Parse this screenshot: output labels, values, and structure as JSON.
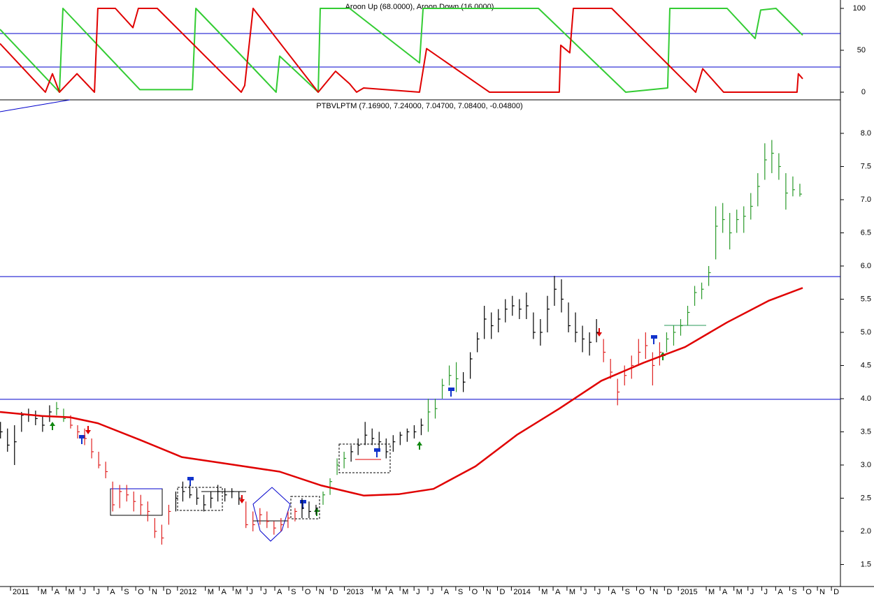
{
  "chart_data": [
    {
      "type": "line",
      "title": "Aroon Up (68.0000), Aroon Down (16.0000)",
      "xlim": [
        2010.937,
        2015.971
      ],
      "ylim": [
        -9.17,
        110
      ],
      "yticks": [
        0,
        50,
        100
      ],
      "hlines": [
        70,
        30
      ],
      "hline_color": "#0000cc",
      "series": [
        {
          "color": "#33cc33",
          "x": [
            2010.937,
            2011.293,
            2011.314,
            2011.775,
            2012.089,
            2012.11,
            2012.424,
            2012.591,
            2012.612,
            2012.843,
            2012.855,
            2013.031,
            2013.45,
            2013.471,
            2014.162,
            2014.685,
            2014.936,
            2014.949,
            2015.292,
            2015.46,
            2015.493,
            2015.585,
            2015.745
          ],
          "values": [
            75,
            0,
            100,
            3,
            3,
            100,
            35,
            0,
            43,
            0,
            100,
            100,
            35,
            100,
            100,
            0,
            5,
            100,
            100,
            64,
            98,
            100,
            68
          ]
        },
        {
          "color": "#e00000",
          "x": [
            2010.937,
            2011.209,
            2011.251,
            2011.293,
            2011.398,
            2011.503,
            2011.523,
            2011.628,
            2011.733,
            2011.766,
            2011.879,
            2012.382,
            2012.403,
            2012.453,
            2012.843,
            2012.947,
            2013.031,
            2013.073,
            2013.115,
            2013.45,
            2013.492,
            2013.869,
            2014.287,
            2014.296,
            2014.35,
            2014.371,
            2014.601,
            2015.104,
            2015.146,
            2015.271,
            2015.711,
            2015.719,
            2015.745
          ],
          "values": [
            58,
            0,
            22,
            0,
            22,
            0,
            100,
            100,
            77,
            100,
            100,
            0,
            8,
            100,
            0,
            25,
            10,
            0,
            5,
            0,
            52,
            0,
            0,
            56,
            47,
            100,
            100,
            0,
            28,
            0,
            0,
            22,
            16
          ]
        }
      ]
    },
    {
      "type": "ohlc",
      "title": "PTBVLPTM (7.16900, 7.24000, 7.04700, 7.08400, -0.04800)",
      "xlim": [
        2010.937,
        2015.971
      ],
      "ylim": [
        1.168,
        8.484
      ],
      "yticks": [
        1.5,
        {
          "value": 2,
          "label": "2.0"
        },
        2.5,
        {
          "value": 3,
          "label": "3.0"
        },
        3.5,
        {
          "value": 4,
          "label": "4.0"
        },
        4.5,
        {
          "value": 5,
          "label": "5.0"
        },
        5.5,
        {
          "value": 6,
          "label": "6.0"
        },
        6.5,
        {
          "value": 7,
          "label": "7.0"
        },
        7.5,
        {
          "value": 8,
          "label": "8.0"
        }
      ],
      "xticks": [
        {
          "value": 2011,
          "label": "2011"
        },
        {
          "value": 2011.167,
          "label": "M"
        },
        {
          "value": 2011.25,
          "label": "A"
        },
        {
          "value": 2011.333,
          "label": "M"
        },
        {
          "value": 2011.417,
          "label": "J"
        },
        {
          "value": 2011.5,
          "label": "J"
        },
        {
          "value": 2011.583,
          "label": "A"
        },
        {
          "value": 2011.667,
          "label": "S"
        },
        {
          "value": 2011.75,
          "label": "O"
        },
        {
          "value": 2011.833,
          "label": "N"
        },
        {
          "value": 2011.917,
          "label": "D"
        },
        {
          "value": 2012,
          "label": "2012"
        },
        {
          "value": 2012.167,
          "label": "M"
        },
        {
          "value": 2012.25,
          "label": "A"
        },
        {
          "value": 2012.333,
          "label": "M"
        },
        {
          "value": 2012.417,
          "label": "J"
        },
        {
          "value": 2012.5,
          "label": "J"
        },
        {
          "value": 2012.583,
          "label": "A"
        },
        {
          "value": 2012.667,
          "label": "S"
        },
        {
          "value": 2012.75,
          "label": "O"
        },
        {
          "value": 2012.833,
          "label": "N"
        },
        {
          "value": 2012.917,
          "label": "D"
        },
        {
          "value": 2013,
          "label": "2013"
        },
        {
          "value": 2013.167,
          "label": "M"
        },
        {
          "value": 2013.25,
          "label": "A"
        },
        {
          "value": 2013.333,
          "label": "M"
        },
        {
          "value": 2013.417,
          "label": "J"
        },
        {
          "value": 2013.5,
          "label": "J"
        },
        {
          "value": 2013.583,
          "label": "A"
        },
        {
          "value": 2013.667,
          "label": "S"
        },
        {
          "value": 2013.75,
          "label": "O"
        },
        {
          "value": 2013.833,
          "label": "N"
        },
        {
          "value": 2013.917,
          "label": "D"
        },
        {
          "value": 2014,
          "label": "2014"
        },
        {
          "value": 2014.167,
          "label": "M"
        },
        {
          "value": 2014.25,
          "label": "A"
        },
        {
          "value": 2014.333,
          "label": "M"
        },
        {
          "value": 2014.417,
          "label": "J"
        },
        {
          "value": 2014.5,
          "label": "J"
        },
        {
          "value": 2014.583,
          "label": "A"
        },
        {
          "value": 2014.667,
          "label": "S"
        },
        {
          "value": 2014.75,
          "label": "O"
        },
        {
          "value": 2014.833,
          "label": "N"
        },
        {
          "value": 2014.917,
          "label": "D"
        },
        {
          "value": 2015,
          "label": "2015"
        },
        {
          "value": 2015.167,
          "label": "M"
        },
        {
          "value": 2015.25,
          "label": "A"
        },
        {
          "value": 2015.333,
          "label": "M"
        },
        {
          "value": 2015.417,
          "label": "J"
        },
        {
          "value": 2015.5,
          "label": "J"
        },
        {
          "value": 2015.583,
          "label": "A"
        },
        {
          "value": 2015.667,
          "label": "S"
        },
        {
          "value": 2015.75,
          "label": "O"
        },
        {
          "value": 2015.833,
          "label": "N"
        },
        {
          "value": 2015.917,
          "label": "D"
        }
      ],
      "hlines": [
        5.84,
        3.99
      ],
      "hline_color": "#0000cc",
      "series": [
        {
          "color": "#e00000",
          "x": [
            2010.937,
            2011.188,
            2011.356,
            2011.523,
            2011.775,
            2012.026,
            2012.319,
            2012.612,
            2012.863,
            2013.115,
            2013.324,
            2013.533,
            2013.785,
            2014.036,
            2014.287,
            2014.539,
            2014.79,
            2015.041,
            2015.292,
            2015.544,
            2015.745
          ],
          "values": [
            3.8,
            3.74,
            3.72,
            3.63,
            3.38,
            3.12,
            3.01,
            2.9,
            2.69,
            2.54,
            2.56,
            2.64,
            2.98,
            3.46,
            3.85,
            4.27,
            4.54,
            4.78,
            5.15,
            5.48,
            5.67
          ]
        }
      ],
      "bars": [
        {
          "color": "#000000",
          "x": [
            2010.94,
            2010.982,
            2011.024,
            2011.066,
            2011.108,
            2011.15,
            2011.192,
            2011.234
          ],
          "high": [
            3.65,
            3.55,
            3.6,
            3.8,
            3.85,
            3.82,
            3.75,
            3.9
          ],
          "low": [
            3.4,
            3.2,
            3.0,
            3.5,
            3.65,
            3.6,
            3.5,
            3.65
          ],
          "close": [
            3.5,
            3.3,
            3.35,
            3.75,
            3.75,
            3.7,
            3.6,
            3.8
          ]
        },
        {
          "color": "#2a9a2a",
          "x": [
            2011.276,
            2011.318
          ],
          "high": [
            3.95,
            3.85
          ],
          "low": [
            3.75,
            3.65
          ],
          "close": [
            3.85,
            3.7
          ]
        },
        {
          "color": "#e02020",
          "x": [
            2011.36,
            2011.402,
            2011.444,
            2011.486,
            2011.528,
            2011.57,
            2011.612,
            2011.654,
            2011.696,
            2011.738,
            2011.78,
            2011.822,
            2011.864,
            2011.906,
            2011.948
          ],
          "high": [
            3.75,
            3.6,
            3.55,
            3.4,
            3.2,
            3.05,
            2.75,
            2.7,
            2.7,
            2.6,
            2.55,
            2.45,
            2.2,
            2.1,
            2.4
          ],
          "low": [
            3.55,
            3.4,
            3.3,
            3.1,
            2.95,
            2.8,
            2.3,
            2.35,
            2.45,
            2.3,
            2.25,
            2.15,
            1.9,
            1.8,
            2.1
          ],
          "close": [
            3.6,
            3.5,
            3.4,
            3.2,
            3.0,
            2.9,
            2.4,
            2.6,
            2.55,
            2.45,
            2.4,
            2.3,
            2.0,
            1.9,
            2.3
          ]
        },
        {
          "color": "#000000",
          "x": [
            2011.99,
            2012.032,
            2012.074,
            2012.116,
            2012.158,
            2012.2,
            2012.242,
            2012.284,
            2012.326,
            2012.368
          ],
          "high": [
            2.6,
            2.75,
            2.7,
            2.65,
            2.55,
            2.6,
            2.7,
            2.65,
            2.65,
            2.6
          ],
          "low": [
            2.3,
            2.45,
            2.5,
            2.4,
            2.3,
            2.35,
            2.45,
            2.45,
            2.5,
            2.4
          ],
          "close": [
            2.5,
            2.6,
            2.55,
            2.5,
            2.4,
            2.5,
            2.6,
            2.55,
            2.6,
            2.5
          ]
        },
        {
          "color": "#e02020",
          "x": [
            2012.41,
            2012.452,
            2012.494,
            2012.536,
            2012.578,
            2012.62,
            2012.662,
            2012.704
          ],
          "high": [
            2.45,
            2.3,
            2.35,
            2.3,
            2.15,
            2.2,
            2.3,
            2.35
          ],
          "low": [
            2.05,
            2.0,
            2.1,
            2.05,
            1.95,
            2.0,
            2.05,
            2.15
          ],
          "close": [
            2.1,
            2.1,
            2.25,
            2.15,
            2.05,
            2.1,
            2.2,
            2.3
          ]
        },
        {
          "color": "#000000",
          "x": [
            2012.746,
            2012.788,
            2012.83
          ],
          "high": [
            2.5,
            2.45,
            2.4
          ],
          "low": [
            2.2,
            2.2,
            2.25
          ],
          "close": [
            2.35,
            2.3,
            2.35
          ]
        },
        {
          "color": "#2a9a2a",
          "x": [
            2012.872,
            2012.914,
            2012.956,
            2012.998
          ],
          "high": [
            2.6,
            2.8,
            3.1,
            3.2
          ],
          "low": [
            2.4,
            2.55,
            2.85,
            2.95
          ],
          "close": [
            2.55,
            2.75,
            3.0,
            3.1
          ]
        },
        {
          "color": "#000000",
          "x": [
            2013.04,
            2013.082,
            2013.124,
            2013.166,
            2013.208,
            2013.25,
            2013.292,
            2013.334,
            2013.376,
            2013.418,
            2013.46
          ],
          "high": [
            3.3,
            3.4,
            3.65,
            3.55,
            3.5,
            3.4,
            3.45,
            3.5,
            3.55,
            3.6,
            3.7
          ],
          "low": [
            3.05,
            3.15,
            3.3,
            3.3,
            3.25,
            3.1,
            3.2,
            3.3,
            3.35,
            3.4,
            3.45
          ],
          "close": [
            3.2,
            3.3,
            3.45,
            3.4,
            3.35,
            3.2,
            3.35,
            3.45,
            3.5,
            3.5,
            3.6
          ]
        },
        {
          "color": "#2a9a2a",
          "x": [
            2013.502,
            2013.544,
            2013.586,
            2013.628,
            2013.67
          ],
          "high": [
            4.0,
            4.0,
            4.3,
            4.5,
            4.55
          ],
          "low": [
            3.5,
            3.7,
            4.0,
            4.2,
            4.1
          ],
          "close": [
            3.8,
            3.85,
            4.2,
            4.35,
            4.3
          ]
        },
        {
          "color": "#000000",
          "x": [
            2013.712,
            2013.754,
            2013.796,
            2013.838,
            2013.88,
            2013.922,
            2013.964,
            2014.006,
            2014.048,
            2014.09,
            2014.132,
            2014.174,
            2014.216,
            2014.258,
            2014.3,
            2014.342,
            2014.384,
            2014.426,
            2014.468,
            2014.51
          ],
          "high": [
            4.4,
            4.7,
            5.0,
            5.4,
            5.3,
            5.35,
            5.5,
            5.55,
            5.5,
            5.6,
            5.3,
            5.2,
            5.55,
            5.85,
            5.8,
            5.45,
            5.3,
            5.1,
            5.0,
            5.2
          ],
          "low": [
            4.1,
            4.3,
            4.7,
            4.9,
            4.9,
            5.0,
            5.15,
            5.25,
            5.2,
            5.2,
            4.9,
            4.8,
            5.0,
            5.4,
            5.3,
            5.0,
            4.85,
            4.7,
            4.65,
            4.85
          ],
          "close": [
            4.25,
            4.6,
            4.9,
            5.2,
            5.1,
            5.2,
            5.35,
            5.4,
            5.35,
            5.4,
            5.0,
            5.0,
            5.35,
            5.65,
            5.5,
            5.1,
            5.0,
            4.9,
            4.85,
            5.0
          ]
        },
        {
          "color": "#e02020",
          "x": [
            2014.552,
            2014.594,
            2014.636,
            2014.678,
            2014.72,
            2014.762,
            2014.804,
            2014.846,
            2014.888
          ],
          "high": [
            4.9,
            4.6,
            4.3,
            4.5,
            4.65,
            4.9,
            5.0,
            4.7,
            4.85
          ],
          "low": [
            4.55,
            4.3,
            3.9,
            4.2,
            4.3,
            4.5,
            4.6,
            4.2,
            4.5
          ],
          "close": [
            4.7,
            4.4,
            4.1,
            4.35,
            4.5,
            4.7,
            4.8,
            4.5,
            4.7
          ]
        },
        {
          "color": "#2a9a2a",
          "x": [
            2014.93,
            2014.972,
            2015.014,
            2015.056,
            2015.098,
            2015.14,
            2015.182,
            2015.224,
            2015.266,
            2015.308,
            2015.35,
            2015.392,
            2015.434,
            2015.476,
            2015.518,
            2015.56,
            2015.602,
            2015.644,
            2015.686,
            2015.728
          ],
          "high": [
            5.0,
            5.1,
            5.2,
            5.4,
            5.7,
            5.75,
            6.0,
            6.9,
            6.95,
            6.8,
            6.85,
            6.9,
            7.1,
            7.4,
            7.85,
            7.9,
            7.7,
            7.4,
            7.35,
            7.24
          ],
          "low": [
            4.7,
            4.8,
            4.95,
            5.1,
            5.4,
            5.5,
            5.7,
            6.1,
            6.5,
            6.25,
            6.5,
            6.5,
            6.7,
            6.9,
            7.3,
            7.4,
            7.3,
            6.85,
            7.05,
            7.047
          ],
          "close": [
            4.9,
            5.0,
            5.1,
            5.3,
            5.6,
            5.65,
            5.9,
            6.6,
            6.7,
            6.5,
            6.7,
            6.75,
            6.9,
            7.2,
            7.6,
            7.7,
            7.5,
            7.1,
            7.15,
            7.084
          ]
        }
      ]
    }
  ]
}
